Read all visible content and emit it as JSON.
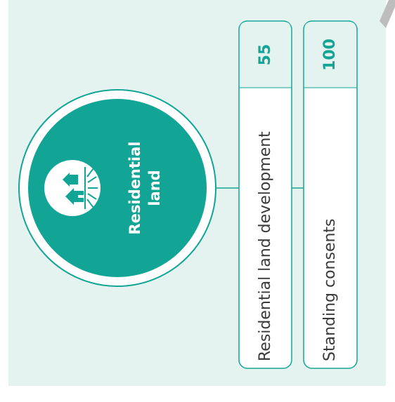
{
  "center": {
    "title_lines": [
      "Residential",
      "land"
    ]
  },
  "items": [
    {
      "label": "Residential land development",
      "value": 55
    },
    {
      "label": "Standing consents",
      "value": 100
    }
  ]
}
